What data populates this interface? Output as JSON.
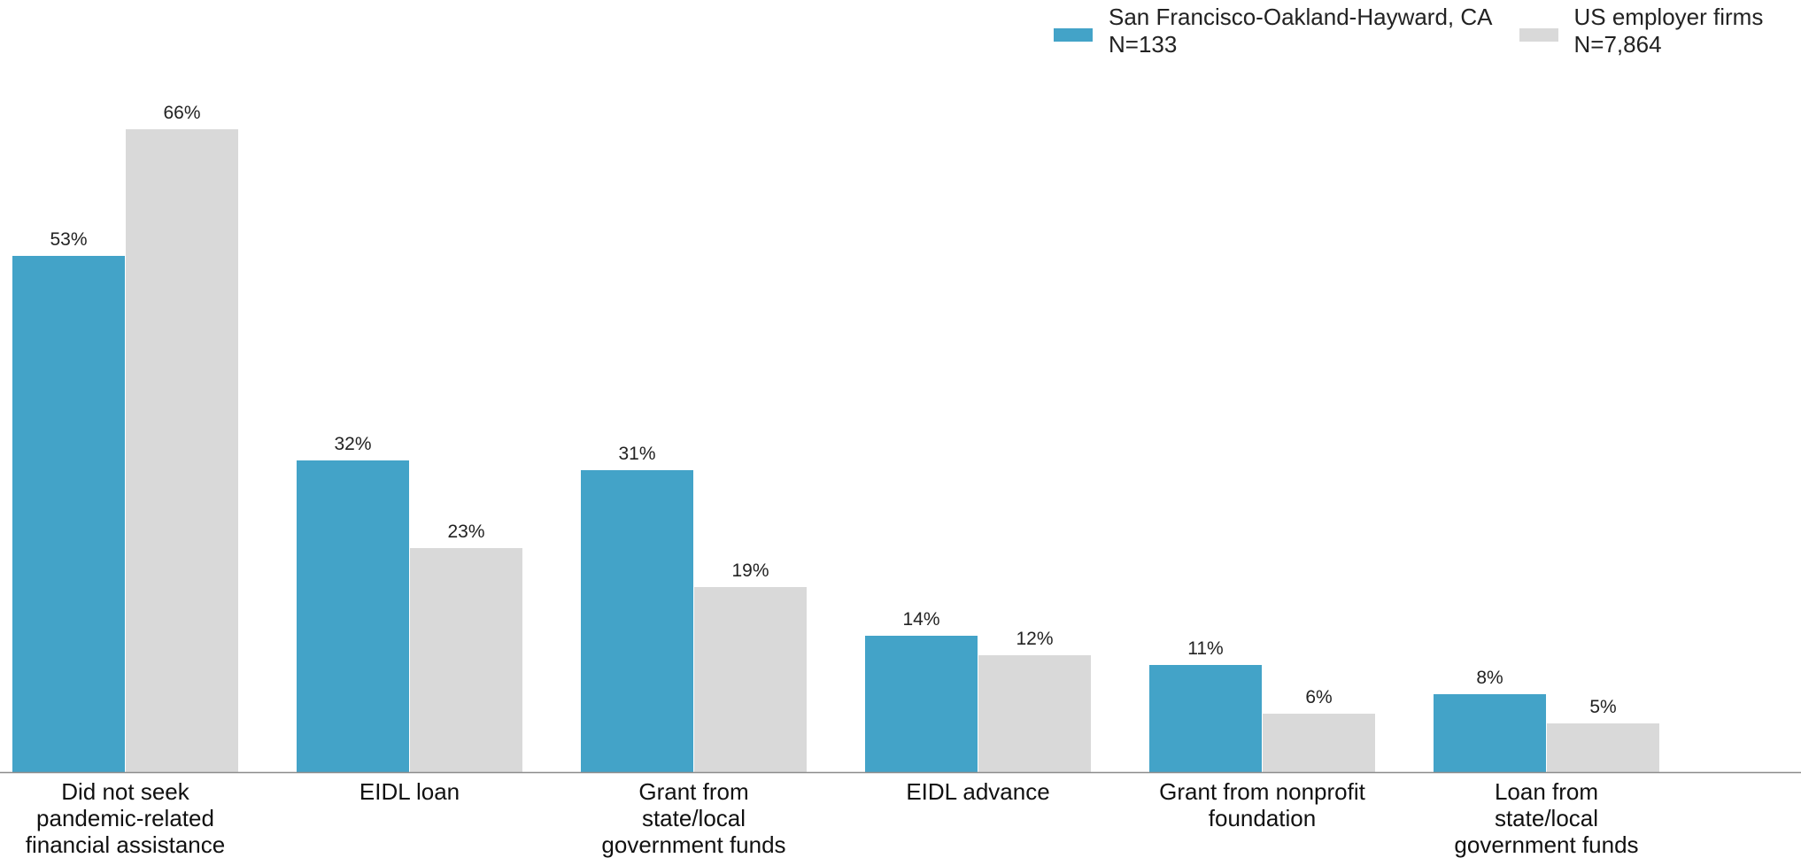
{
  "chart_data": {
    "type": "bar",
    "categories": [
      [
        "Did not seek",
        "pandemic-related",
        "financial assistance"
      ],
      [
        "EIDL loan"
      ],
      [
        "Grant from",
        "state/local",
        "government funds"
      ],
      [
        "EIDL advance"
      ],
      [
        "Grant from nonprofit",
        "foundation"
      ],
      [
        "Loan from",
        "state/local",
        "government funds"
      ]
    ],
    "series": [
      {
        "name": "San Francisco-Oakland-Hayward, CA",
        "n_label": "N=133",
        "color": "#43a3c8",
        "values": [
          53,
          32,
          31,
          14,
          11,
          8
        ],
        "labels": [
          "53%",
          "32%",
          "31%",
          "14%",
          "11%",
          "8%"
        ]
      },
      {
        "name": "US employer firms",
        "n_label": "N=7,864",
        "color": "#d9d9d9",
        "values": [
          66,
          23,
          19,
          12,
          6,
          5
        ],
        "labels": [
          "66%",
          "23%",
          "19%",
          "12%",
          "6%",
          "5%"
        ]
      }
    ],
    "ylim": [
      0,
      70
    ],
    "grid": false,
    "legend_position": "top-right",
    "axis_color": "#8c8c8c"
  }
}
